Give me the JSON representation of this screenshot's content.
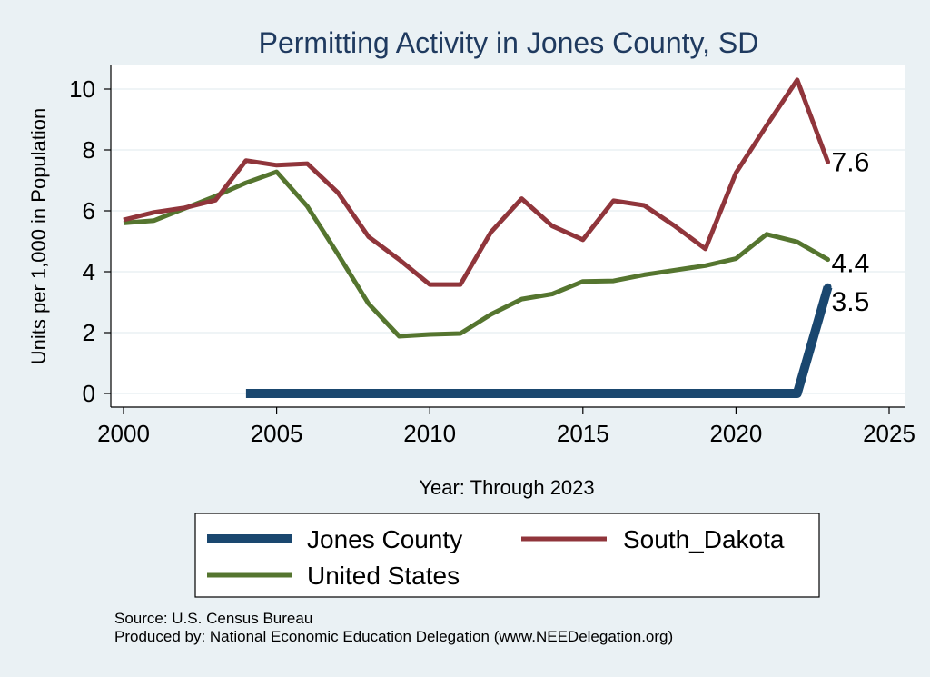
{
  "chart_data": {
    "type": "line",
    "title": "Permitting Activity in Jones County, SD",
    "xlabel": "Year: Through 2023",
    "ylabel": "Units per 1,000 in Population",
    "xlim": [
      2000,
      2025
    ],
    "ylim": [
      0,
      10.5
    ],
    "xticks": [
      2000,
      2005,
      2010,
      2015,
      2020,
      2025
    ],
    "yticks": [
      0,
      2,
      4,
      6,
      8,
      10
    ],
    "xtick_labels": [
      "2000",
      "2005",
      "2010",
      "2015",
      "2020",
      "2025"
    ],
    "ytick_labels": [
      "0",
      "2",
      "4",
      "6",
      "8",
      "10"
    ],
    "grid": true,
    "legend_position": "bottom",
    "series": [
      {
        "name": "Jones County",
        "color": "#1a476f",
        "x": [
          2004,
          2005,
          2006,
          2007,
          2008,
          2009,
          2010,
          2011,
          2012,
          2013,
          2014,
          2015,
          2016,
          2017,
          2018,
          2019,
          2020,
          2021,
          2022,
          2023
        ],
        "values": [
          0,
          0,
          0,
          0,
          0,
          0,
          0,
          0,
          0,
          0,
          0,
          0,
          0,
          0,
          0,
          0,
          0,
          0,
          0,
          3.5
        ],
        "end_label": "3.5"
      },
      {
        "name": "South_Dakota",
        "color": "#90353b",
        "x": [
          2000,
          2001,
          2002,
          2003,
          2004,
          2005,
          2006,
          2007,
          2008,
          2009,
          2010,
          2011,
          2012,
          2013,
          2014,
          2015,
          2016,
          2017,
          2018,
          2019,
          2020,
          2021,
          2022,
          2023
        ],
        "values": [
          5.7,
          5.95,
          6.1,
          6.35,
          7.65,
          7.5,
          7.55,
          6.6,
          5.15,
          4.4,
          3.58,
          3.58,
          5.3,
          6.4,
          5.5,
          5.05,
          6.33,
          6.18,
          5.5,
          4.75,
          7.25,
          8.8,
          10.3,
          7.6
        ],
        "end_label": "7.6"
      },
      {
        "name": "United States",
        "color": "#55752f",
        "x": [
          2000,
          2001,
          2002,
          2003,
          2004,
          2005,
          2006,
          2007,
          2008,
          2009,
          2010,
          2011,
          2012,
          2013,
          2014,
          2015,
          2016,
          2017,
          2018,
          2019,
          2020,
          2021,
          2022,
          2023
        ],
        "values": [
          5.6,
          5.68,
          6.08,
          6.48,
          6.92,
          7.28,
          6.15,
          4.58,
          2.95,
          1.88,
          1.94,
          1.97,
          2.6,
          3.1,
          3.27,
          3.68,
          3.7,
          3.9,
          4.05,
          4.2,
          4.43,
          5.23,
          4.98,
          4.4
        ],
        "end_label": "4.4"
      }
    ]
  },
  "footer": {
    "source": "Source: U.S. Census Bureau",
    "produced_by": "Produced by: National Economic Education Delegation (www.NEEDelegation.org)"
  }
}
